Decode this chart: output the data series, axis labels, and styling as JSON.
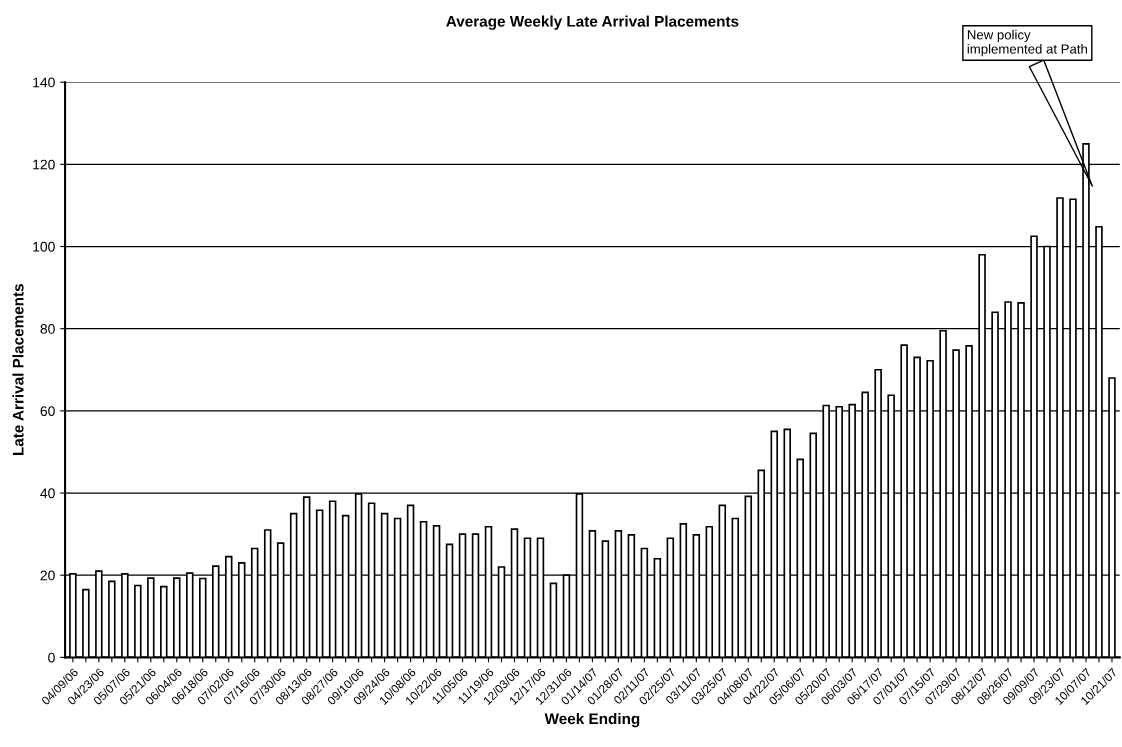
{
  "chart_data": {
    "type": "bar",
    "title": "Average Weekly Late Arrival Placements",
    "xlabel": "Week Ending",
    "ylabel": "Late Arrival Placements",
    "categories": [
      "04/09/06",
      null,
      "04/23/06",
      null,
      "05/07/06",
      null,
      "05/21/06",
      null,
      "06/04/06",
      null,
      "06/18/06",
      null,
      "07/02/06",
      null,
      "07/16/06",
      null,
      "07/30/06",
      null,
      "08/13/06",
      null,
      "08/27/06",
      null,
      "09/10/06",
      null,
      "09/24/06",
      null,
      "10/08/06",
      null,
      "10/22/06",
      null,
      "11/05/06",
      null,
      "11/19/06",
      null,
      "12/03/06",
      null,
      "12/17/06",
      null,
      "12/31/06",
      null,
      "01/14/07",
      null,
      "01/28/07",
      null,
      "02/11/07",
      null,
      "02/25/07",
      null,
      "03/11/07",
      null,
      "03/25/07",
      null,
      "04/08/07",
      null,
      "04/22/07",
      null,
      "05/06/07",
      null,
      "05/20/07",
      null,
      "06/03/07",
      null,
      "06/17/07",
      null,
      "07/01/07",
      null,
      "07/15/07",
      null,
      "07/29/07",
      null,
      "08/12/07",
      null,
      "08/26/07",
      null,
      "09/09/07",
      null,
      "09/23/07",
      null,
      "10/07/07",
      null,
      "10/21/07"
    ],
    "series": [
      {
        "color": "#ffffff",
        "values": [
          20.3,
          16.5,
          21,
          18.5,
          20.3,
          17.5,
          19.3,
          17.2,
          19.3,
          20.5,
          19.2,
          22.2,
          24.5,
          23,
          26.5,
          31,
          27.8,
          35,
          39,
          35.8,
          38,
          34.5,
          39.8,
          37.5,
          35,
          33.8,
          37,
          33,
          32,
          27.5,
          30,
          30,
          31.8,
          22,
          31.2,
          29,
          29,
          18,
          20,
          39.8,
          30.8,
          28.3,
          30.8,
          29.8,
          26.5,
          24,
          29,
          32.5,
          29.8,
          31.8,
          37,
          33.8,
          39.2,
          45.5,
          55,
          55.5,
          48.2,
          54.5,
          61.3,
          61,
          61.5,
          64.5,
          70,
          63.8,
          76,
          73,
          72.2,
          79.5,
          74.8,
          75.8,
          98,
          84,
          86.5,
          86.3,
          102.5,
          100,
          111.8,
          111.5,
          125,
          104.8,
          68
        ]
      }
    ],
    "ylim": [
      0,
      140
    ],
    "yticks": [
      0,
      20,
      40,
      60,
      80,
      100,
      120,
      140
    ],
    "grid": "y",
    "annotations": [
      "New policy\nimplemented at Path"
    ]
  }
}
